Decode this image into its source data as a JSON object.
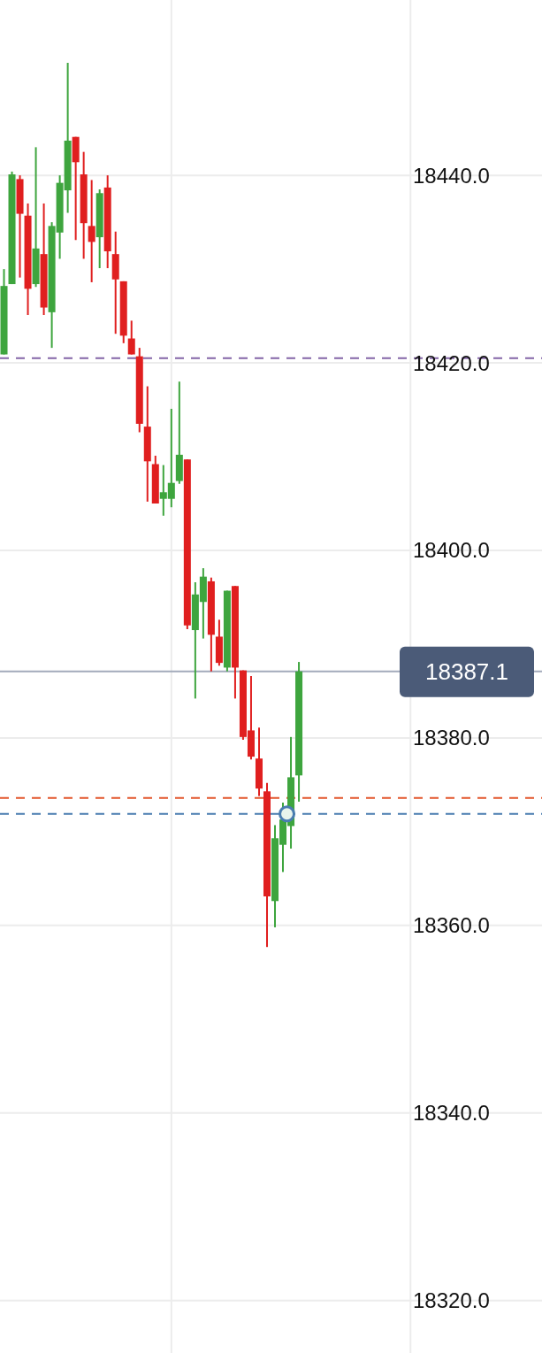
{
  "chart_data": {
    "type": "candlestick",
    "categories": [
      null,
      null,
      null,
      null,
      null,
      null,
      null,
      null,
      null,
      null,
      null,
      null,
      null,
      null,
      null,
      null,
      null,
      null,
      null,
      null,
      null,
      null,
      null,
      null,
      null,
      null,
      null,
      null,
      null,
      null,
      null,
      null,
      null,
      null,
      null,
      null,
      null,
      null,
      null,
      null,
      null,
      null,
      null,
      null,
      null,
      null,
      null,
      null,
      null,
      null,
      null,
      null,
      null,
      null,
      null,
      null,
      null,
      null,
      null,
      null,
      null,
      null,
      null,
      null,
      null,
      null,
      null,
      null
    ],
    "ohlc": [
      [
        18420.9,
        18430.0,
        18420.9,
        18428.2
      ],
      [
        18428.4,
        18440.4,
        18428.4,
        18440.1
      ],
      [
        18439.6,
        18440.0,
        18429.1,
        18435.9
      ],
      [
        18435.7,
        18437.0,
        18425.1,
        18427.9
      ],
      [
        18428.4,
        18443.0,
        18428.1,
        18432.2
      ],
      [
        18431.6,
        18437.0,
        18425.1,
        18425.9
      ],
      [
        18425.4,
        18435.0,
        18421.6,
        18434.6
      ],
      [
        18433.9,
        18440.0,
        18431.1,
        18439.2
      ],
      [
        18438.4,
        18452.0,
        18436.0,
        18443.7
      ],
      [
        18444.1,
        18444.1,
        18433.1,
        18441.4
      ],
      [
        18440.1,
        18442.5,
        18431.1,
        18434.9
      ],
      [
        18434.6,
        18439.5,
        18428.6,
        18432.9
      ],
      [
        18433.4,
        18438.5,
        18430.1,
        18438.1
      ],
      [
        18438.7,
        18440.0,
        18430.1,
        18431.9
      ],
      [
        18431.6,
        18434.0,
        18423.1,
        18428.9
      ],
      [
        18428.7,
        18428.7,
        18422.1,
        18422.9
      ],
      [
        18422.6,
        18424.5,
        18420.9,
        18420.9
      ],
      [
        18420.7,
        18421.6,
        18412.6,
        18413.5
      ],
      [
        18413.2,
        18417.5,
        18405.2,
        18409.5
      ],
      [
        18409.2,
        18410.1,
        18405.0,
        18405.0
      ],
      [
        18405.5,
        18409.1,
        18403.7,
        18406.2
      ],
      [
        18405.5,
        18415.1,
        18404.6,
        18407.2
      ],
      [
        18407.4,
        18418.0,
        18407.1,
        18410.2
      ],
      [
        18409.7,
        18409.7,
        18391.6,
        18392.0
      ],
      [
        18391.5,
        18396.6,
        18384.2,
        18395.3
      ],
      [
        18394.5,
        18398.1,
        18390.6,
        18397.2
      ],
      [
        18396.7,
        18397.1,
        18387.1,
        18391.0
      ],
      [
        18390.8,
        18392.6,
        18387.7,
        18388.0
      ],
      [
        18387.5,
        18395.7,
        18387.1,
        18395.7
      ],
      [
        18396.2,
        18396.2,
        18384.2,
        18387.5
      ],
      [
        18387.2,
        18387.2,
        18379.8,
        18380.1
      ],
      [
        18380.8,
        18386.6,
        18377.7,
        18378.0
      ],
      [
        18377.8,
        18381.1,
        18373.8,
        18374.6
      ],
      [
        18374.3,
        18375.2,
        18357.7,
        18363.1
      ],
      [
        18362.6,
        18370.7,
        18359.8,
        18369.3
      ],
      [
        18368.6,
        18373.1,
        18365.7,
        18371.3
      ],
      [
        18370.6,
        18380.1,
        18368.2,
        18375.8
      ],
      [
        18376.0,
        18388.1,
        18373.2,
        18387.1
      ],
      null,
      null,
      null,
      null,
      null,
      null,
      null,
      null,
      null,
      null,
      null,
      null,
      null,
      null,
      null,
      null,
      null,
      null,
      null,
      null,
      null,
      null,
      null,
      null,
      null,
      null,
      null,
      null,
      null,
      null
    ],
    "colors": [
      "#3ea53e",
      "#3ea53e",
      "#e01f1f",
      "#e01f1f",
      "#3ea53e",
      "#e01f1f",
      "#3ea53e",
      "#3ea53e",
      "#3ea53e",
      "#e01f1f",
      "#e01f1f",
      "#e01f1f",
      "#3ea53e",
      "#e01f1f",
      "#e01f1f",
      "#e01f1f",
      "#e01f1f",
      "#e01f1f",
      "#e01f1f",
      "#e01f1f",
      "#3ea53e",
      "#3ea53e",
      "#3ea53e",
      "#e01f1f",
      "#3ea53e",
      "#3ea53e",
      "#e01f1f",
      "#e01f1f",
      "#3ea53e",
      "#e01f1f",
      "#e01f1f",
      "#e01f1f",
      "#e01f1f",
      "#e01f1f",
      "#3ea53e",
      "#3ea53e",
      "#3ea53e",
      "#3ea53e",
      null,
      null,
      null,
      null,
      null,
      null,
      null,
      null,
      null,
      null,
      null,
      null,
      null,
      null,
      null,
      null,
      null,
      null,
      null,
      null,
      null,
      null,
      null,
      null,
      null,
      null,
      null,
      null,
      null,
      null
    ],
    "ylim": [
      18314.4,
      18458.7
    ],
    "yticks": [
      {
        "value": 18320,
        "label": "18320.0"
      },
      {
        "value": 18340,
        "label": "18340.0"
      },
      {
        "value": 18360,
        "label": "18360.0"
      },
      {
        "value": 18380,
        "label": "18380.0"
      },
      {
        "value": 18400,
        "label": "18400.0"
      },
      {
        "value": 18420,
        "label": "18420.0"
      },
      {
        "value": 18440,
        "label": "18440.0"
      }
    ],
    "tick_labels": "y",
    "grid": true,
    "ref_lines": [
      {
        "axis": "y",
        "value": 18420.5,
        "color": "#8466a8",
        "line_style": "dashed"
      },
      {
        "axis": "y",
        "value": 18387.1,
        "label": "18387.1",
        "color": "#a3abbb",
        "line_style": "solid"
      },
      {
        "axis": "y",
        "value": 18373.6,
        "color": "#e2562c",
        "line_style": "dashed"
      },
      {
        "axis": "y",
        "value": 18371.9,
        "color": "#4a7db0",
        "line_style": "dashed"
      }
    ]
  }
}
